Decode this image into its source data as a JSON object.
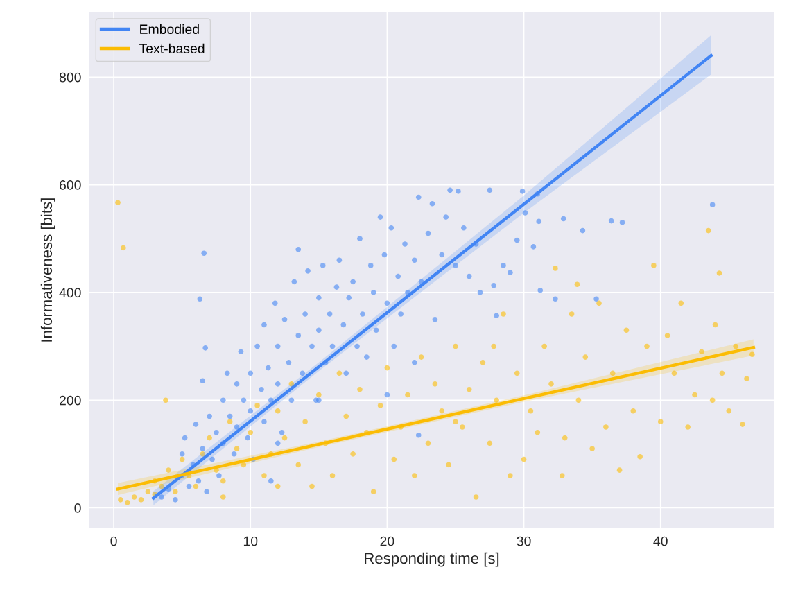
{
  "chart_data": {
    "type": "scatter",
    "xlabel": "Responding time [s]",
    "ylabel": "Informativeness [bits]",
    "xlim": [
      -1.8,
      48.3
    ],
    "ylim": [
      -38,
      921
    ],
    "xticks": [
      0,
      10,
      20,
      30,
      40
    ],
    "yticks": [
      0,
      200,
      400,
      600,
      800
    ],
    "grid": true,
    "legend": "top left",
    "series": [
      {
        "marker": "circle",
        "color": "#4285f4",
        "x": [
          3.5,
          4,
          4.5,
          5,
          5,
          5.5,
          5.2,
          5.8,
          6,
          6.2,
          6.5,
          6.8,
          7,
          7.2,
          7.5,
          7.7,
          8,
          8,
          8.3,
          8.5,
          8.8,
          9,
          9,
          9.3,
          9.5,
          9.8,
          10,
          10,
          10.2,
          10.5,
          10.8,
          11,
          11,
          11.3,
          11.5,
          11.8,
          12,
          12,
          12.3,
          12.5,
          12.8,
          13,
          13.2,
          13.5,
          13.5,
          13.8,
          14,
          14.2,
          14.5,
          14.8,
          15,
          15,
          15.3,
          15.5,
          15.8,
          16,
          16.3,
          16.5,
          16.8,
          17,
          17.2,
          17.5,
          17.8,
          18,
          18.2,
          18.5,
          18.8,
          19,
          19.2,
          19.5,
          19.8,
          20,
          20.3,
          20.5,
          20.8,
          21,
          21.3,
          21.5,
          22,
          22.3,
          22.5,
          23,
          23.3,
          23.5,
          24,
          24.3,
          24.6,
          25,
          25.2,
          25.6,
          26,
          26.5,
          26.8,
          27.5,
          27.8,
          28,
          28.5,
          29,
          29.5,
          29.9,
          30.1,
          30.7,
          31,
          31.1,
          31.2,
          32.3,
          32.9,
          34.3,
          35.3,
          36.4,
          37.2,
          43.8,
          6.3,
          6.6,
          6.7,
          6.5,
          11.5,
          12,
          15,
          20,
          22,
          22.3
        ],
        "values": [
          20,
          35,
          15,
          60,
          100,
          40,
          130,
          80,
          155,
          50,
          110,
          30,
          170,
          90,
          140,
          60,
          200,
          120,
          250,
          170,
          100,
          230,
          150,
          290,
          200,
          130,
          250,
          180,
          90,
          300,
          220,
          160,
          340,
          260,
          200,
          380,
          300,
          230,
          140,
          350,
          270,
          200,
          420,
          320,
          480,
          250,
          360,
          440,
          300,
          200,
          390,
          330,
          450,
          270,
          360,
          300,
          410,
          460,
          340,
          250,
          390,
          420,
          300,
          500,
          360,
          280,
          450,
          400,
          330,
          540,
          470,
          380,
          520,
          300,
          430,
          360,
          490,
          400,
          460,
          577,
          420,
          510,
          565,
          350,
          470,
          540,
          590,
          450,
          588,
          520,
          430,
          490,
          400,
          590,
          413,
          357,
          450,
          437,
          497,
          588,
          548,
          485,
          583,
          532,
          404,
          388,
          537,
          515,
          388,
          533,
          530,
          563,
          388,
          473,
          297,
          236,
          50,
          120,
          200,
          210,
          270,
          135
        ]
      },
      {
        "marker": "circle",
        "color": "#fbbc04",
        "x": [
          0.3,
          0.7,
          3.8,
          0.5,
          1,
          1.5,
          2,
          2.5,
          3,
          3,
          3.5,
          4,
          4.5,
          5,
          5.5,
          6,
          6.5,
          7,
          7.5,
          8,
          8.5,
          9,
          9.5,
          10,
          10.5,
          11,
          11.5,
          12,
          12.5,
          13,
          13.5,
          14,
          14.5,
          15,
          15.5,
          16,
          16.5,
          17,
          17.5,
          18,
          18.5,
          19,
          19.5,
          20,
          20.5,
          21,
          21.5,
          22,
          22.5,
          23,
          23.5,
          24,
          24.5,
          25,
          25.5,
          26,
          26.5,
          27,
          27.5,
          28,
          28.5,
          29,
          29.5,
          30,
          30.5,
          31,
          31.5,
          32,
          32.3,
          32.8,
          33,
          33.5,
          33.9,
          34,
          34.5,
          35,
          35.5,
          36,
          36.5,
          37,
          37.5,
          38,
          38.5,
          39,
          39.5,
          40,
          40.5,
          41,
          41.5,
          42,
          42.5,
          43,
          43.5,
          44,
          44.3,
          44.5,
          45,
          45.5,
          46,
          46.3,
          46.7,
          25,
          12,
          8,
          27.8,
          43.8
        ],
        "values": [
          567,
          483,
          200,
          15,
          10,
          20,
          15,
          30,
          25,
          50,
          40,
          70,
          30,
          90,
          60,
          40,
          100,
          130,
          70,
          50,
          160,
          110,
          80,
          140,
          190,
          60,
          100,
          180,
          130,
          230,
          80,
          160,
          40,
          210,
          120,
          60,
          250,
          170,
          100,
          220,
          140,
          30,
          190,
          260,
          90,
          150,
          210,
          60,
          280,
          120,
          230,
          180,
          80,
          300,
          150,
          220,
          20,
          270,
          120,
          200,
          360,
          60,
          250,
          90,
          180,
          140,
          300,
          230,
          445,
          60,
          130,
          360,
          415,
          200,
          280,
          110,
          380,
          150,
          250,
          70,
          330,
          180,
          95,
          300,
          450,
          160,
          320,
          250,
          380,
          150,
          210,
          290,
          515,
          340,
          436,
          250,
          180,
          300,
          155,
          240,
          285,
          160,
          40,
          20,
          300,
          200
        ]
      },
      {
        "type": "line",
        "marker": "none",
        "name": "Embodied",
        "color": "#4285f4",
        "x": [
          2.9,
          15,
          30,
          43.7
        ],
        "values": [
          18,
          262,
          564,
          840
        ],
        "lower": [
          5,
          254,
          548,
          805
        ],
        "upper": [
          31,
          270,
          580,
          878
        ]
      },
      {
        "type": "line",
        "marker": "none",
        "name": "Text-based",
        "color": "#fbbc04",
        "x": [
          0.3,
          15,
          30,
          46.8
        ],
        "values": [
          35,
          118,
          203,
          298
        ],
        "lower": [
          24,
          113,
          197,
          283
        ],
        "upper": [
          46,
          123,
          209,
          313
        ]
      }
    ]
  }
}
